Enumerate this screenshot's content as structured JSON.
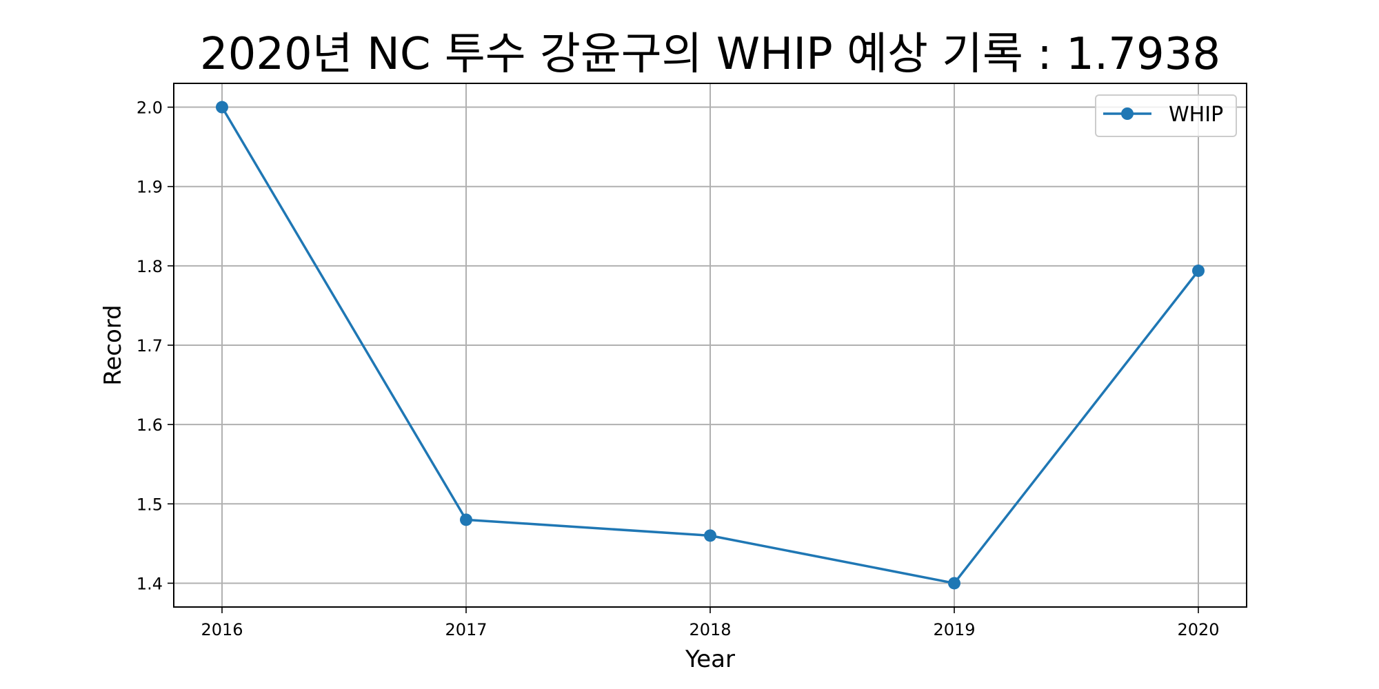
{
  "chart_data": {
    "type": "line",
    "title": "2020년 NC 투수 강윤구의 WHIP 예상 기록 : 1.7938",
    "xlabel": "Year",
    "ylabel": "Record",
    "x": [
      "2016",
      "2017",
      "2018",
      "2019",
      "2020"
    ],
    "series": [
      {
        "name": "WHIP",
        "values": [
          2.0,
          1.48,
          1.46,
          1.4,
          1.7938
        ],
        "color": "#1f77b4",
        "marker": "circle"
      }
    ],
    "ylim": [
      1.37,
      2.03
    ],
    "yticks": [
      "1.4",
      "1.5",
      "1.6",
      "1.7",
      "1.8",
      "1.9",
      "2.0"
    ],
    "grid": true,
    "legend": "top-right"
  }
}
